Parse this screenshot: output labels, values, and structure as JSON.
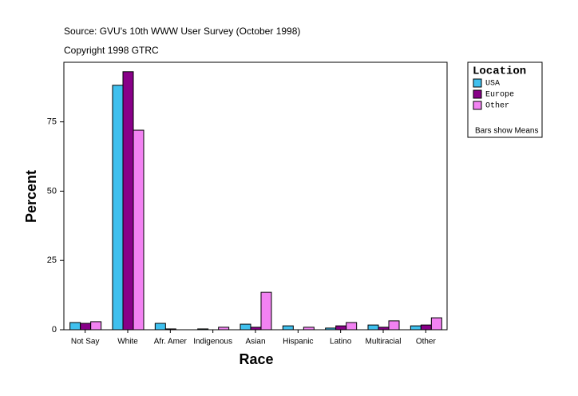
{
  "chart_data": {
    "type": "bar",
    "source": "Source: GVU's 10th WWW User Survey (October 1998)",
    "copyright": "Copyright 1998 GTRC",
    "x_label": "Race",
    "y_label": "Percent",
    "legend_title": "Location",
    "note": "Bars show Means",
    "categories": [
      "Not Say",
      "White",
      "Afr. Amer",
      "Indigenous",
      "Asian",
      "Hispanic",
      "Latino",
      "Multiracial",
      "Other"
    ],
    "series": [
      {
        "name": "USA",
        "color": "#3fc0ee",
        "values": [
          2.6,
          88.2,
          2.3,
          0.3,
          2.0,
          1.4,
          0.6,
          1.7,
          1.4
        ]
      },
      {
        "name": "Europe",
        "color": "#880088",
        "values": [
          2.3,
          93.1,
          0.3,
          0,
          0.9,
          0,
          1.4,
          0.9,
          1.7
        ]
      },
      {
        "name": "Other",
        "color": "#f282f2",
        "values": [
          2.9,
          72.0,
          0,
          0.9,
          13.5,
          0.9,
          2.6,
          3.2,
          4.3
        ]
      }
    ],
    "ylim": [
      0,
      96.5
    ],
    "yticks": [
      0,
      25,
      50,
      75
    ],
    "legend_position": "right"
  }
}
